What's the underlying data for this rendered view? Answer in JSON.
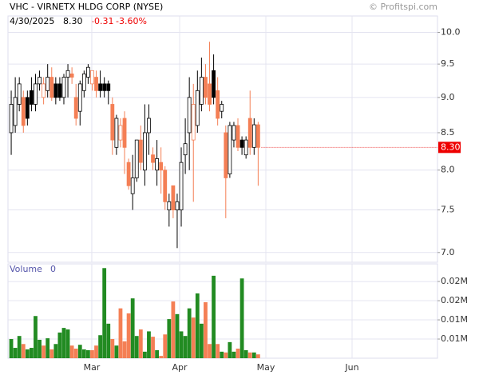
{
  "chart_data": [
    {
      "type": "candlestick",
      "title": "VHC - VIRNETX HLDG CORP (NYSE)",
      "date": "4/30/2025",
      "last": "8.30",
      "change": "-0.31",
      "change_pct": "-3.60%",
      "credit": "© Profitspi.com",
      "open": [
        8.5,
        8.6,
        8.9,
        9.0,
        9.0,
        9.1,
        8.9,
        9.2,
        9.0,
        9.1,
        9.3,
        9.2,
        9.2,
        9.0,
        9.3,
        9.35,
        9.0,
        8.8,
        9.1,
        9.3,
        9.2,
        9.3,
        9.2,
        9.2,
        9.2,
        8.9,
        8.3,
        8.4,
        8.7,
        8.1,
        7.7,
        7.9,
        8.4,
        8.0,
        8.5,
        8.2,
        8.0,
        8.1,
        8.0,
        7.5,
        7.8,
        7.5,
        7.5,
        8.2,
        8.5,
        8.4,
        8.6,
        8.9,
        9.3,
        9.2,
        9.4,
        9.1,
        8.8,
        8.5,
        7.95,
        8.4,
        8.6,
        8.4,
        8.2,
        8.7,
        8.3,
        8.61
      ],
      "high": [
        9.1,
        9.3,
        9.3,
        9.1,
        9.1,
        9.3,
        9.35,
        9.4,
        9.3,
        9.5,
        9.45,
        9.3,
        9.3,
        9.35,
        9.5,
        9.45,
        9.2,
        9.25,
        9.4,
        9.5,
        9.4,
        9.4,
        9.4,
        9.3,
        9.25,
        9.0,
        8.75,
        8.7,
        8.8,
        8.15,
        8.2,
        8.4,
        8.6,
        8.9,
        8.9,
        8.3,
        8.4,
        8.3,
        8.05,
        7.7,
        7.8,
        7.7,
        8.3,
        8.7,
        9.3,
        9.2,
        9.4,
        9.6,
        9.5,
        9.85,
        9.65,
        9.3,
        8.95,
        8.6,
        8.65,
        8.65,
        8.7,
        8.45,
        8.45,
        9.1,
        8.7,
        8.65
      ],
      "low": [
        8.2,
        8.5,
        8.8,
        8.5,
        8.6,
        8.8,
        8.8,
        9.1,
        8.9,
        9.0,
        8.95,
        8.9,
        8.95,
        8.9,
        9.0,
        9.2,
        8.6,
        8.6,
        9.0,
        9.2,
        9.1,
        9.0,
        9.0,
        9.0,
        8.9,
        8.2,
        8.2,
        8.3,
        7.95,
        7.75,
        7.5,
        7.85,
        8.0,
        7.8,
        8.2,
        8.0,
        7.8,
        7.7,
        7.5,
        7.3,
        7.4,
        7.05,
        7.3,
        7.95,
        8.0,
        7.6,
        8.5,
        8.8,
        8.9,
        8.8,
        8.9,
        8.6,
        8.7,
        7.4,
        7.9,
        8.3,
        8.25,
        8.2,
        8.15,
        8.2,
        8.2,
        7.8
      ],
      "close": [
        8.9,
        9.0,
        9.2,
        8.6,
        8.7,
        8.9,
        9.2,
        9.3,
        9.2,
        9.3,
        9.0,
        9.0,
        9.0,
        9.3,
        9.4,
        9.3,
        8.7,
        9.2,
        9.35,
        9.45,
        9.4,
        9.1,
        9.1,
        9.1,
        9.1,
        8.4,
        8.7,
        8.6,
        8.3,
        7.8,
        7.9,
        8.4,
        8.1,
        8.5,
        8.7,
        8.1,
        8.15,
        8.0,
        7.6,
        7.6,
        7.5,
        7.6,
        8.1,
        8.35,
        9.0,
        8.9,
        9.1,
        9.3,
        9.0,
        8.9,
        9.0,
        8.7,
        8.9,
        7.9,
        8.6,
        8.6,
        8.3,
        8.3,
        8.4,
        8.3,
        8.61,
        8.3
      ],
      "xlim": [
        -0.8,
        105.3
      ],
      "xticks": [
        {
          "value": 19.9,
          "label": "Mar"
        },
        {
          "value": 41.6,
          "label": "Apr"
        },
        {
          "value": 62.9,
          "label": "May"
        },
        {
          "value": 84.2,
          "label": "Jun"
        }
      ],
      "ylim": [
        6.89,
        10.27
      ],
      "log_y": true,
      "yticks": [
        {
          "value": 7,
          "label": "7.0"
        },
        7.5,
        {
          "value": 8,
          "label": "8.0"
        },
        8.5,
        {
          "value": 9,
          "label": "9.0"
        },
        9.5,
        {
          "value": 10,
          "label": "10.0"
        }
      ],
      "grid": true,
      "up_color": "#000000",
      "down_color": "#f47f55"
    },
    {
      "type": "bar",
      "title": "Volume",
      "subtitle": "0",
      "values": [
        5000,
        2700,
        5800,
        3700,
        2300,
        2700,
        11000,
        4800,
        3300,
        5200,
        2300,
        3700,
        6700,
        7900,
        7500,
        3300,
        2500,
        3500,
        2300,
        2100,
        2100,
        3300,
        6000,
        23500,
        9000,
        5000,
        3300,
        13000,
        4400,
        11700,
        15600,
        5800,
        7500,
        1700,
        7000,
        5600,
        2100,
        600,
        6200,
        10200,
        14800,
        11500,
        7000,
        5800,
        13000,
        10600,
        16900,
        9000,
        14600,
        3700,
        21500,
        3700,
        1700,
        1500,
        4200,
        1700,
        2500,
        20800,
        2100,
        1500,
        1500,
        1000
      ],
      "ylim": [
        0,
        24600
      ],
      "yticks": [
        {
          "value": 5000,
          "label": "0.01M"
        },
        {
          "value": 10000,
          "label": "0.01M"
        },
        {
          "value": 15000,
          "label": "0.02M"
        },
        {
          "value": 20000,
          "label": "0.02M"
        }
      ],
      "up_color": "#228b22",
      "down_color": "#f47f55"
    }
  ]
}
